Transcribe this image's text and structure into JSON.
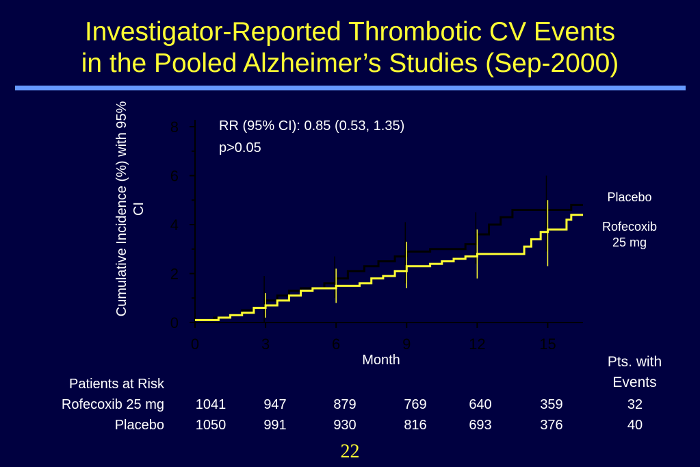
{
  "title": {
    "line1": "Investigator-Reported Thrombotic CV Events",
    "line2": "in the Pooled Alzheimer’s Studies (Sep-2000)"
  },
  "stats": {
    "rr": "RR (95% CI):  0.85 (0.53, 1.35)",
    "p": "p>0.05"
  },
  "legend": {
    "placebo": "Placebo",
    "rofecoxib_line1": "Rofecoxib",
    "rofecoxib_line2": "25 mg"
  },
  "colors": {
    "background": "#000040",
    "title": "#ffff33",
    "rule": "#6699ff",
    "rofecoxib": "#ffff33",
    "placebo": "#000000",
    "axis": "#000000"
  },
  "chart_data": {
    "type": "line",
    "xlabel": "Month",
    "ylabel": "Cumulative Incidence (%) with 95% CI",
    "xlim": [
      0,
      16.5
    ],
    "ylim": [
      0,
      8
    ],
    "xticks": [
      0,
      3,
      6,
      9,
      12,
      15
    ],
    "yticks": [
      0,
      2,
      4,
      6,
      8
    ],
    "grid": false,
    "series": [
      {
        "name": "Placebo",
        "color": "#000000",
        "steps": [
          [
            0,
            0.1
          ],
          [
            0.8,
            0.2
          ],
          [
            1.5,
            0.3
          ],
          [
            2,
            0.5
          ],
          [
            2.5,
            0.6
          ],
          [
            3,
            0.9
          ],
          [
            3.5,
            1.1
          ],
          [
            4,
            1.3
          ],
          [
            4.5,
            1.4
          ],
          [
            5.5,
            1.6
          ],
          [
            6,
            1.8
          ],
          [
            6.5,
            2.1
          ],
          [
            7.2,
            2.3
          ],
          [
            7.8,
            2.5
          ],
          [
            8.5,
            2.7
          ],
          [
            9,
            2.9
          ],
          [
            10,
            3.0
          ],
          [
            11.5,
            3.2
          ],
          [
            12,
            3.6
          ],
          [
            12.5,
            4.0
          ],
          [
            13,
            4.3
          ],
          [
            13.5,
            4.6
          ],
          [
            16,
            4.8
          ],
          [
            16.5,
            4.8
          ]
        ],
        "ci": [
          {
            "x": 3,
            "lo": 0.0,
            "hi": 1.9
          },
          {
            "x": 6,
            "lo": 1.0,
            "hi": 2.7
          },
          {
            "x": 9,
            "lo": 1.6,
            "hi": 4.1
          },
          {
            "x": 12,
            "lo": 2.4,
            "hi": 4.5
          },
          {
            "x": 15,
            "lo": 2.9,
            "hi": 6.0
          }
        ]
      },
      {
        "name": "Rofecoxib 25 mg",
        "color": "#ffff33",
        "steps": [
          [
            0,
            0.1
          ],
          [
            1,
            0.2
          ],
          [
            1.5,
            0.3
          ],
          [
            2,
            0.4
          ],
          [
            2.5,
            0.6
          ],
          [
            3,
            0.7
          ],
          [
            3.5,
            0.9
          ],
          [
            4,
            1.1
          ],
          [
            4.5,
            1.3
          ],
          [
            5,
            1.4
          ],
          [
            6,
            1.5
          ],
          [
            7,
            1.6
          ],
          [
            7.5,
            1.8
          ],
          [
            8,
            1.9
          ],
          [
            8.5,
            2.1
          ],
          [
            9,
            2.3
          ],
          [
            10,
            2.4
          ],
          [
            10.5,
            2.5
          ],
          [
            11,
            2.6
          ],
          [
            11.5,
            2.7
          ],
          [
            12,
            2.8
          ],
          [
            14,
            3.1
          ],
          [
            14.3,
            3.4
          ],
          [
            14.7,
            3.7
          ],
          [
            15,
            3.8
          ],
          [
            15.8,
            4.2
          ],
          [
            16,
            4.4
          ],
          [
            16.5,
            4.4
          ]
        ],
        "ci": [
          {
            "x": 3,
            "lo": 0.2,
            "hi": 1.2
          },
          {
            "x": 6,
            "lo": 0.8,
            "hi": 2.2
          },
          {
            "x": 9,
            "lo": 1.4,
            "hi": 3.3
          },
          {
            "x": 12,
            "lo": 1.8,
            "hi": 3.8
          },
          {
            "x": 15,
            "lo": 2.3,
            "hi": 5.0
          }
        ]
      }
    ]
  },
  "risk_table": {
    "header": "Patients at Risk",
    "events_header_line1": "Pts. with",
    "events_header_line2": "Events",
    "rows": [
      {
        "label": "Rofecoxib 25 mg",
        "values": [
          "1041",
          "947",
          "879",
          "769",
          "640",
          "359"
        ],
        "events": "32"
      },
      {
        "label": "Placebo",
        "values": [
          "1050",
          "991",
          "930",
          "816",
          "693",
          "376"
        ],
        "events": "40"
      }
    ]
  },
  "page_number": "22"
}
